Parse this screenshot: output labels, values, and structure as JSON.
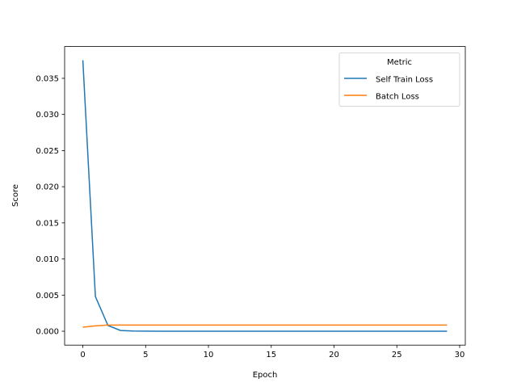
{
  "chart_data": {
    "type": "line",
    "title": "",
    "xlabel": "Epoch",
    "ylabel": "Score",
    "xlim": [
      -1.45,
      30.45
    ],
    "ylim": [
      -0.00192,
      0.0394
    ],
    "xticks": [
      0,
      5,
      10,
      15,
      20,
      25,
      30
    ],
    "xtick_labels": [
      "0",
      "5",
      "10",
      "15",
      "20",
      "25",
      "30"
    ],
    "yticks": [
      0,
      0.005,
      0.01,
      0.015,
      0.02,
      0.025,
      0.03,
      0.035
    ],
    "ytick_labels": [
      "0.000",
      "0.005",
      "0.010",
      "0.015",
      "0.020",
      "0.025",
      "0.030",
      "0.035"
    ],
    "grid": false,
    "legend": {
      "title": "Metric",
      "placement": "upper-right"
    },
    "x": [
      0,
      1,
      2,
      3,
      4,
      5,
      6,
      7,
      8,
      9,
      10,
      11,
      12,
      13,
      14,
      15,
      16,
      17,
      18,
      19,
      20,
      21,
      22,
      23,
      24,
      25,
      26,
      27,
      28,
      29
    ],
    "series": [
      {
        "name": "Self Train Loss",
        "color": "#1f77b4",
        "values": [
          0.0375,
          0.0048,
          0.0008,
          0.0001,
          3e-05,
          2e-05,
          1e-05,
          1e-05,
          1e-05,
          1e-05,
          1e-05,
          1e-05,
          1e-05,
          1e-05,
          1e-05,
          1e-05,
          1e-05,
          1e-05,
          1e-05,
          1e-05,
          1e-05,
          1e-05,
          1e-05,
          1e-05,
          1e-05,
          1e-05,
          1e-05,
          1e-05,
          1e-05,
          1e-05
        ]
      },
      {
        "name": "Batch Loss",
        "color": "#ff7f0e",
        "values": [
          0.00056,
          0.00075,
          0.00085,
          0.00086,
          0.00086,
          0.00086,
          0.00086,
          0.00086,
          0.00086,
          0.00086,
          0.00086,
          0.00086,
          0.00086,
          0.00086,
          0.00086,
          0.00086,
          0.00086,
          0.00086,
          0.00086,
          0.00086,
          0.00086,
          0.00086,
          0.00086,
          0.00086,
          0.00086,
          0.00086,
          0.00086,
          0.00086,
          0.00086,
          0.00086
        ]
      }
    ]
  }
}
